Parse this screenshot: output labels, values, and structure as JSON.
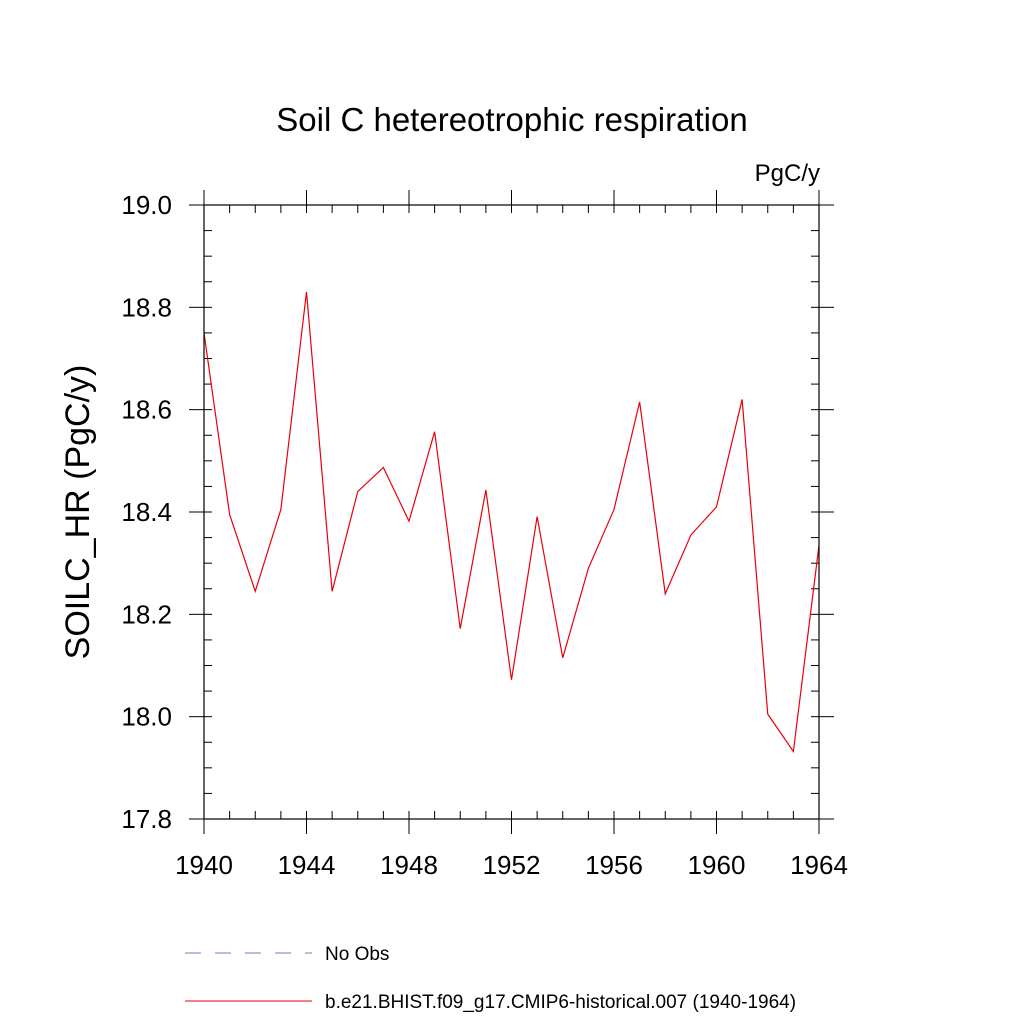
{
  "chart_data": {
    "type": "line",
    "title": "Soil C hetereotrophic respiration",
    "units": "PgC/y",
    "ylabel": "SOILC_HR  (PgC/y)",
    "xlabel": "",
    "xlim": [
      1940,
      1964
    ],
    "ylim": [
      17.8,
      19.0
    ],
    "xticks": [
      1940,
      1944,
      1948,
      1952,
      1956,
      1960,
      1964
    ],
    "xtick_labels": [
      "1940",
      "1944",
      "1948",
      "1952",
      "1956",
      "1960",
      "1964"
    ],
    "yticks": [
      17.8,
      18.0,
      18.2,
      18.4,
      18.6,
      18.8,
      19.0
    ],
    "ytick_labels": [
      "17.8",
      "18.0",
      "18.2",
      "18.4",
      "18.6",
      "18.8",
      "19.0"
    ],
    "x": [
      1940,
      1941,
      1942,
      1943,
      1944,
      1945,
      1946,
      1947,
      1948,
      1949,
      1950,
      1951,
      1952,
      1953,
      1954,
      1955,
      1956,
      1957,
      1958,
      1959,
      1960,
      1961,
      1962,
      1963,
      1964
    ],
    "series": [
      {
        "name": "b.e21.BHIST.f09_g17.CMIP6-historical.007 (1940-1964)",
        "color": "#e8000b",
        "style": "solid",
        "values": [
          18.75,
          18.395,
          18.245,
          18.405,
          18.83,
          18.245,
          18.44,
          18.487,
          18.382,
          18.557,
          18.172,
          18.443,
          18.072,
          18.391,
          18.115,
          18.29,
          18.405,
          18.615,
          18.24,
          18.355,
          18.41,
          18.62,
          18.005,
          17.932,
          18.335
        ]
      }
    ],
    "legend": [
      {
        "label": "No Obs",
        "color": "#7777bb",
        "style": "dashed"
      },
      {
        "label": "b.e21.BHIST.f09_g17.CMIP6-historical.007 (1940-1964)",
        "color": "#e8000b",
        "style": "solid"
      }
    ],
    "legend_position": "bottom",
    "grid": false
  }
}
